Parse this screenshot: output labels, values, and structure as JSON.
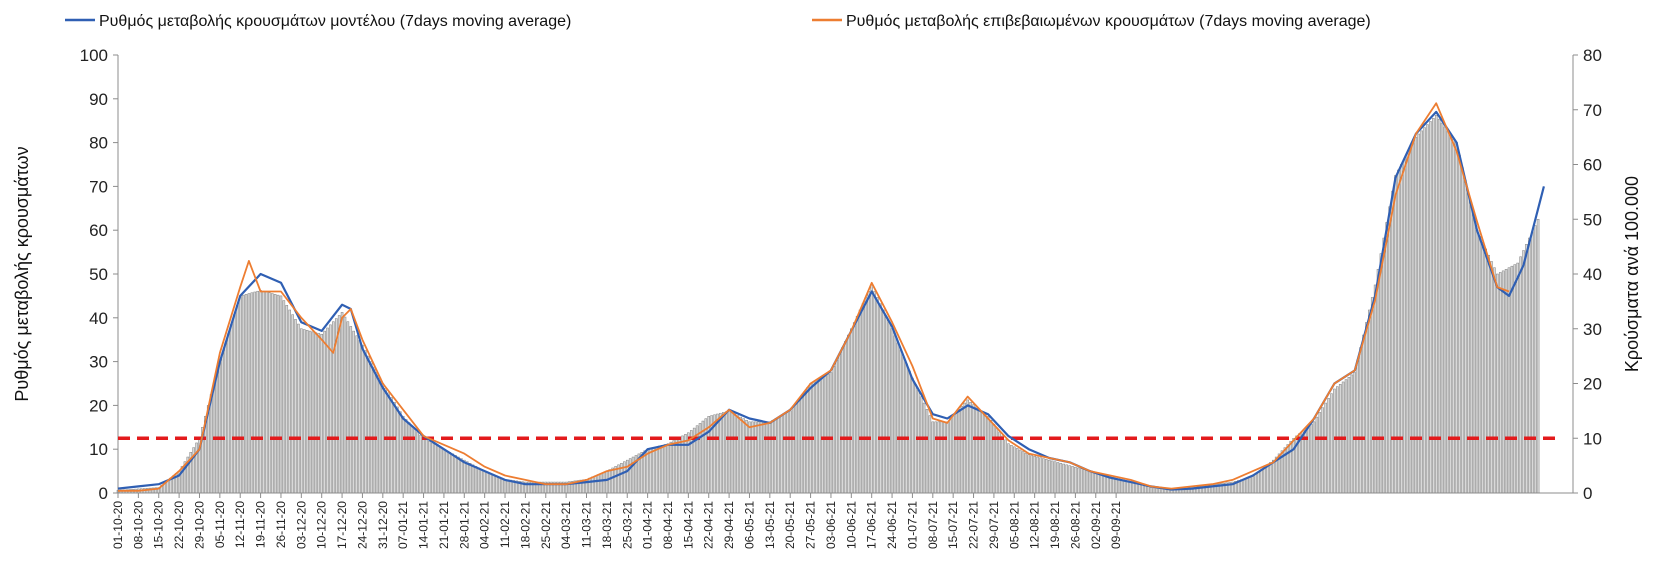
{
  "chart_data": {
    "type": "bar",
    "title": "",
    "ylabel": "Ρυθμός μεταβολής κρουσμάτων",
    "y2label": "Κρούσματα ανά 100.000",
    "ylim": [
      0,
      100
    ],
    "y2lim": [
      0,
      80
    ],
    "yticks": [
      "0",
      "10",
      "20",
      "30",
      "40",
      "50",
      "60",
      "70",
      "80",
      "90",
      "100"
    ],
    "y2ticks": [
      "0",
      "10",
      "20",
      "30",
      "40",
      "50",
      "60",
      "70",
      "80"
    ],
    "x_tick_labels": [
      "01-10-20",
      "08-10-20",
      "15-10-20",
      "22-10-20",
      "29-10-20",
      "05-11-20",
      "12-11-20",
      "19-11-20",
      "26-11-20",
      "03-12-20",
      "10-12-20",
      "17-12-20",
      "24-12-20",
      "31-12-20",
      "07-01-21",
      "14-01-21",
      "21-01-21",
      "28-01-21",
      "04-02-21",
      "11-02-21",
      "18-02-21",
      "25-02-21",
      "04-03-21",
      "11-03-21",
      "18-03-21",
      "25-03-21",
      "01-04-21",
      "08-04-21",
      "15-04-21",
      "22-04-21",
      "29-04-21",
      "06-05-21",
      "13-05-21",
      "20-05-21",
      "27-05-21",
      "03-06-21",
      "10-06-21",
      "17-06-21",
      "24-06-21",
      "01-07-21",
      "08-07-21",
      "15-07-21",
      "22-07-21",
      "29-07-21",
      "05-08-21",
      "12-08-21",
      "19-08-21",
      "26-08-21",
      "02-09-21",
      "09-09-21"
    ],
    "grid": false,
    "legend_position": "top",
    "series": [
      {
        "name": "Ρυθμός μεταβολής κρουσμάτων μοντέλου (7days moving average)",
        "color": "#2f5fb3",
        "type": "line",
        "axis": "left",
        "points": [
          [
            0,
            1
          ],
          [
            7,
            1.5
          ],
          [
            14,
            2
          ],
          [
            21,
            4
          ],
          [
            28,
            10
          ],
          [
            35,
            30
          ],
          [
            42,
            45
          ],
          [
            49,
            50
          ],
          [
            56,
            48
          ],
          [
            63,
            39
          ],
          [
            70,
            37
          ],
          [
            77,
            43
          ],
          [
            80,
            42
          ],
          [
            84,
            33
          ],
          [
            91,
            24
          ],
          [
            98,
            17
          ],
          [
            105,
            13
          ],
          [
            112,
            10
          ],
          [
            119,
            7
          ],
          [
            126,
            5
          ],
          [
            133,
            3
          ],
          [
            140,
            2
          ],
          [
            147,
            2
          ],
          [
            154,
            2
          ],
          [
            161,
            2.5
          ],
          [
            168,
            3
          ],
          [
            175,
            5
          ],
          [
            182,
            10
          ],
          [
            189,
            11
          ],
          [
            196,
            11
          ],
          [
            203,
            14
          ],
          [
            210,
            19
          ],
          [
            217,
            17
          ],
          [
            224,
            16
          ],
          [
            231,
            19
          ],
          [
            238,
            24
          ],
          [
            245,
            28
          ],
          [
            252,
            37
          ],
          [
            259,
            46
          ],
          [
            266,
            38
          ],
          [
            273,
            26
          ],
          [
            280,
            18
          ],
          [
            285,
            17
          ],
          [
            292,
            20
          ],
          [
            299,
            18
          ],
          [
            306,
            13
          ],
          [
            313,
            10
          ],
          [
            320,
            8
          ],
          [
            327,
            7
          ],
          [
            334,
            5
          ],
          [
            341,
            3.5
          ],
          [
            348,
            2.5
          ],
          [
            355,
            1.5
          ],
          [
            362,
            0.8
          ],
          [
            369,
            1
          ],
          [
            376,
            1.5
          ],
          [
            383,
            2
          ],
          [
            390,
            4
          ],
          [
            397,
            7
          ],
          [
            404,
            10
          ],
          [
            411,
            17
          ],
          [
            418,
            25
          ],
          [
            425,
            28
          ],
          [
            432,
            45
          ],
          [
            439,
            72
          ],
          [
            446,
            82
          ],
          [
            453,
            87
          ],
          [
            460,
            80
          ],
          [
            467,
            60
          ],
          [
            474,
            47
          ],
          [
            478,
            45
          ],
          [
            483,
            52
          ],
          [
            490,
            70
          ]
        ]
      },
      {
        "name": "Ρυθμός μεταβολής επιβεβαιωμένων κρουσμάτων (7days moving average)",
        "color": "#ed7d31",
        "type": "line",
        "axis": "left",
        "points": [
          [
            0,
            0.5
          ],
          [
            7,
            0.5
          ],
          [
            14,
            1
          ],
          [
            21,
            5
          ],
          [
            28,
            10
          ],
          [
            35,
            32
          ],
          [
            42,
            47
          ],
          [
            45,
            53
          ],
          [
            49,
            46
          ],
          [
            56,
            46
          ],
          [
            63,
            40
          ],
          [
            70,
            35
          ],
          [
            74,
            32
          ],
          [
            77,
            40
          ],
          [
            80,
            42
          ],
          [
            84,
            35
          ],
          [
            91,
            25
          ],
          [
            98,
            19
          ],
          [
            105,
            13
          ],
          [
            112,
            11
          ],
          [
            119,
            9
          ],
          [
            126,
            6
          ],
          [
            133,
            4
          ],
          [
            140,
            3
          ],
          [
            147,
            2
          ],
          [
            154,
            2
          ],
          [
            161,
            3
          ],
          [
            168,
            5
          ],
          [
            175,
            6
          ],
          [
            182,
            9
          ],
          [
            189,
            11
          ],
          [
            196,
            12
          ],
          [
            203,
            15
          ],
          [
            210,
            19
          ],
          [
            217,
            15
          ],
          [
            224,
            16
          ],
          [
            231,
            19
          ],
          [
            238,
            25
          ],
          [
            245,
            28
          ],
          [
            252,
            37
          ],
          [
            259,
            48
          ],
          [
            266,
            39
          ],
          [
            273,
            29
          ],
          [
            280,
            17
          ],
          [
            285,
            16
          ],
          [
            292,
            22
          ],
          [
            299,
            17
          ],
          [
            306,
            12
          ],
          [
            313,
            9
          ],
          [
            320,
            8
          ],
          [
            327,
            7
          ],
          [
            334,
            5
          ],
          [
            341,
            4
          ],
          [
            348,
            3
          ],
          [
            355,
            1.5
          ],
          [
            362,
            1
          ],
          [
            369,
            1.5
          ],
          [
            376,
            2
          ],
          [
            383,
            3
          ],
          [
            390,
            5
          ],
          [
            397,
            7
          ],
          [
            404,
            12
          ],
          [
            411,
            17
          ],
          [
            418,
            25
          ],
          [
            425,
            28
          ],
          [
            432,
            44
          ],
          [
            439,
            68
          ],
          [
            446,
            82
          ],
          [
            453,
            89
          ],
          [
            460,
            78
          ],
          [
            467,
            62
          ],
          [
            474,
            47
          ],
          [
            478,
            46
          ]
        ]
      },
      {
        "name": "Κρούσματα ανά 100.000",
        "color": "#aaaaaa",
        "type": "bar",
        "axis": "right",
        "points": [
          [
            0,
            0.5
          ],
          [
            14,
            1
          ],
          [
            21,
            4
          ],
          [
            28,
            10
          ],
          [
            35,
            24
          ],
          [
            42,
            36
          ],
          [
            49,
            37
          ],
          [
            56,
            36
          ],
          [
            63,
            30
          ],
          [
            70,
            29
          ],
          [
            77,
            33
          ],
          [
            84,
            27
          ],
          [
            91,
            20
          ],
          [
            98,
            14
          ],
          [
            105,
            10
          ],
          [
            112,
            8
          ],
          [
            119,
            6
          ],
          [
            126,
            4
          ],
          [
            133,
            2.5
          ],
          [
            140,
            2
          ],
          [
            154,
            2
          ],
          [
            161,
            2.5
          ],
          [
            168,
            4
          ],
          [
            175,
            6
          ],
          [
            182,
            8
          ],
          [
            189,
            9
          ],
          [
            196,
            11
          ],
          [
            203,
            14
          ],
          [
            210,
            15
          ],
          [
            217,
            13
          ],
          [
            224,
            13
          ],
          [
            231,
            15
          ],
          [
            238,
            20
          ],
          [
            245,
            22
          ],
          [
            252,
            30
          ],
          [
            259,
            38
          ],
          [
            266,
            30
          ],
          [
            273,
            21
          ],
          [
            280,
            13
          ],
          [
            285,
            13
          ],
          [
            292,
            17
          ],
          [
            299,
            14
          ],
          [
            306,
            9
          ],
          [
            313,
            7
          ],
          [
            320,
            6
          ],
          [
            327,
            5
          ],
          [
            334,
            4
          ],
          [
            341,
            3
          ],
          [
            348,
            2
          ],
          [
            355,
            1
          ],
          [
            362,
            0.5
          ],
          [
            369,
            1
          ],
          [
            376,
            1.5
          ],
          [
            383,
            2
          ],
          [
            390,
            3
          ],
          [
            397,
            6
          ],
          [
            404,
            10
          ],
          [
            411,
            13
          ],
          [
            418,
            19
          ],
          [
            425,
            22
          ],
          [
            432,
            38
          ],
          [
            439,
            58
          ],
          [
            446,
            65
          ],
          [
            453,
            69
          ],
          [
            460,
            64
          ],
          [
            467,
            48
          ],
          [
            474,
            40
          ],
          [
            481,
            42
          ],
          [
            488,
            50
          ]
        ]
      }
    ],
    "threshold": {
      "type": "hline",
      "axis": "right",
      "value": 10,
      "color": "#e31a1c",
      "style": "dashed"
    },
    "x_range_days": [
      0,
      500
    ]
  }
}
